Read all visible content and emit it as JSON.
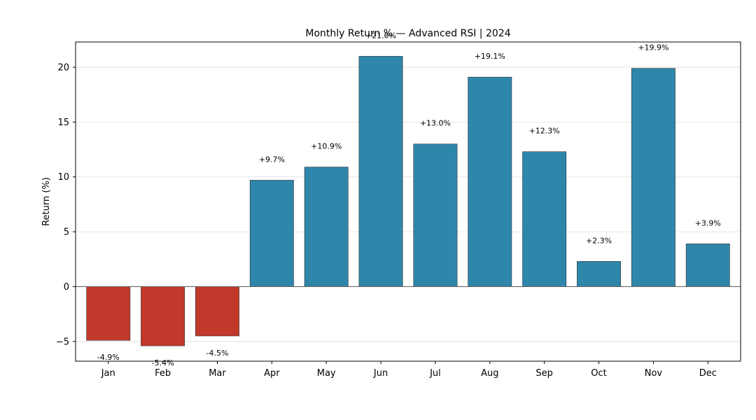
{
  "chart_data": {
    "type": "bar",
    "title": "Monthly Return % — Advanced RSI | 2024",
    "xlabel": "",
    "ylabel": "Return (%)",
    "categories": [
      "Jan",
      "Feb",
      "Mar",
      "Apr",
      "May",
      "Jun",
      "Jul",
      "Aug",
      "Sep",
      "Oct",
      "Nov",
      "Dec"
    ],
    "values": [
      -4.9,
      -5.4,
      -4.5,
      9.7,
      10.9,
      21.0,
      13.0,
      19.1,
      12.3,
      2.3,
      19.9,
      3.9
    ],
    "data_labels": [
      "-4.9%",
      "-5.4%",
      "-4.5%",
      "+9.7%",
      "+10.9%",
      "+21.0%",
      "+13.0%",
      "+19.1%",
      "+12.3%",
      "+2.3%",
      "+19.9%",
      "+3.9%"
    ],
    "ylim": [
      -6.8,
      22.3
    ],
    "yticks": [
      -5,
      0,
      5,
      10,
      15,
      20
    ],
    "ytick_labels": [
      "−5",
      "0",
      "5",
      "10",
      "15",
      "20"
    ],
    "grid": "horizontal",
    "legend": "none",
    "colors": {
      "positive": "#2e86ab",
      "negative": "#c0392b",
      "bar_edge": "#333333",
      "zero_line": "#666666",
      "grid": "#dddddd",
      "axes_edge": "#000000"
    }
  }
}
